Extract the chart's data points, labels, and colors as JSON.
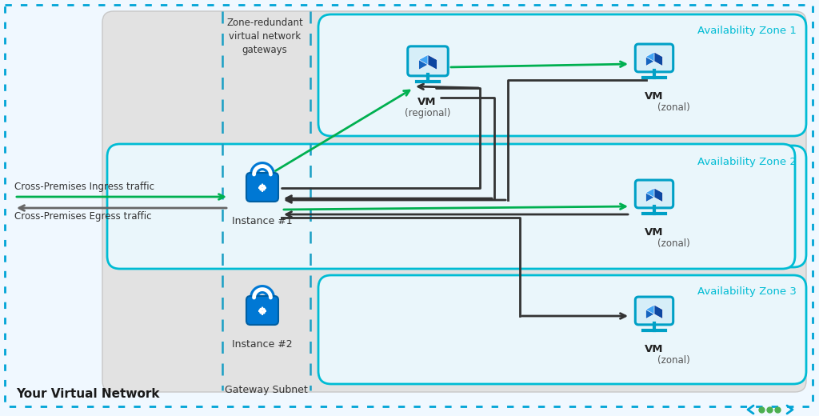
{
  "bg_color": "#f0f8ff",
  "outer_border_color": "#00a4d6",
  "inner_bg": "#e8e8e8",
  "zone_border_color": "#00bcd4",
  "gateway_subnet_dash_color": "#1a9fc4",
  "green_arrow": "#00b050",
  "black_arrow": "#333333",
  "gray_arrow": "#666666",
  "title_vnet": "Your Virtual Network",
  "title_gateway_subnet": "Gateway Subnet",
  "zone_labels": [
    "Availability Zone 1",
    "Availability Zone 2",
    "Availability Zone 3"
  ],
  "label_instance1": "Instance #1",
  "label_instance2": "Instance #2",
  "label_vm_regional_bold": "VM",
  "label_vm_regional_light": "(regional)",
  "label_vm_zonal_bold": "VM",
  "label_vm_zonal_light": "(zonal)",
  "label_ingress": "Cross-Premises Ingress traffic",
  "label_egress": "Cross-Premises Egress traffic",
  "label_zone_redundant": "Zone-redundant\nvirtual network\ngateways",
  "dot_colors": [
    "#4caf50",
    "#4caf50",
    "#4caf50"
  ],
  "chevron_color": "#00a4d6"
}
